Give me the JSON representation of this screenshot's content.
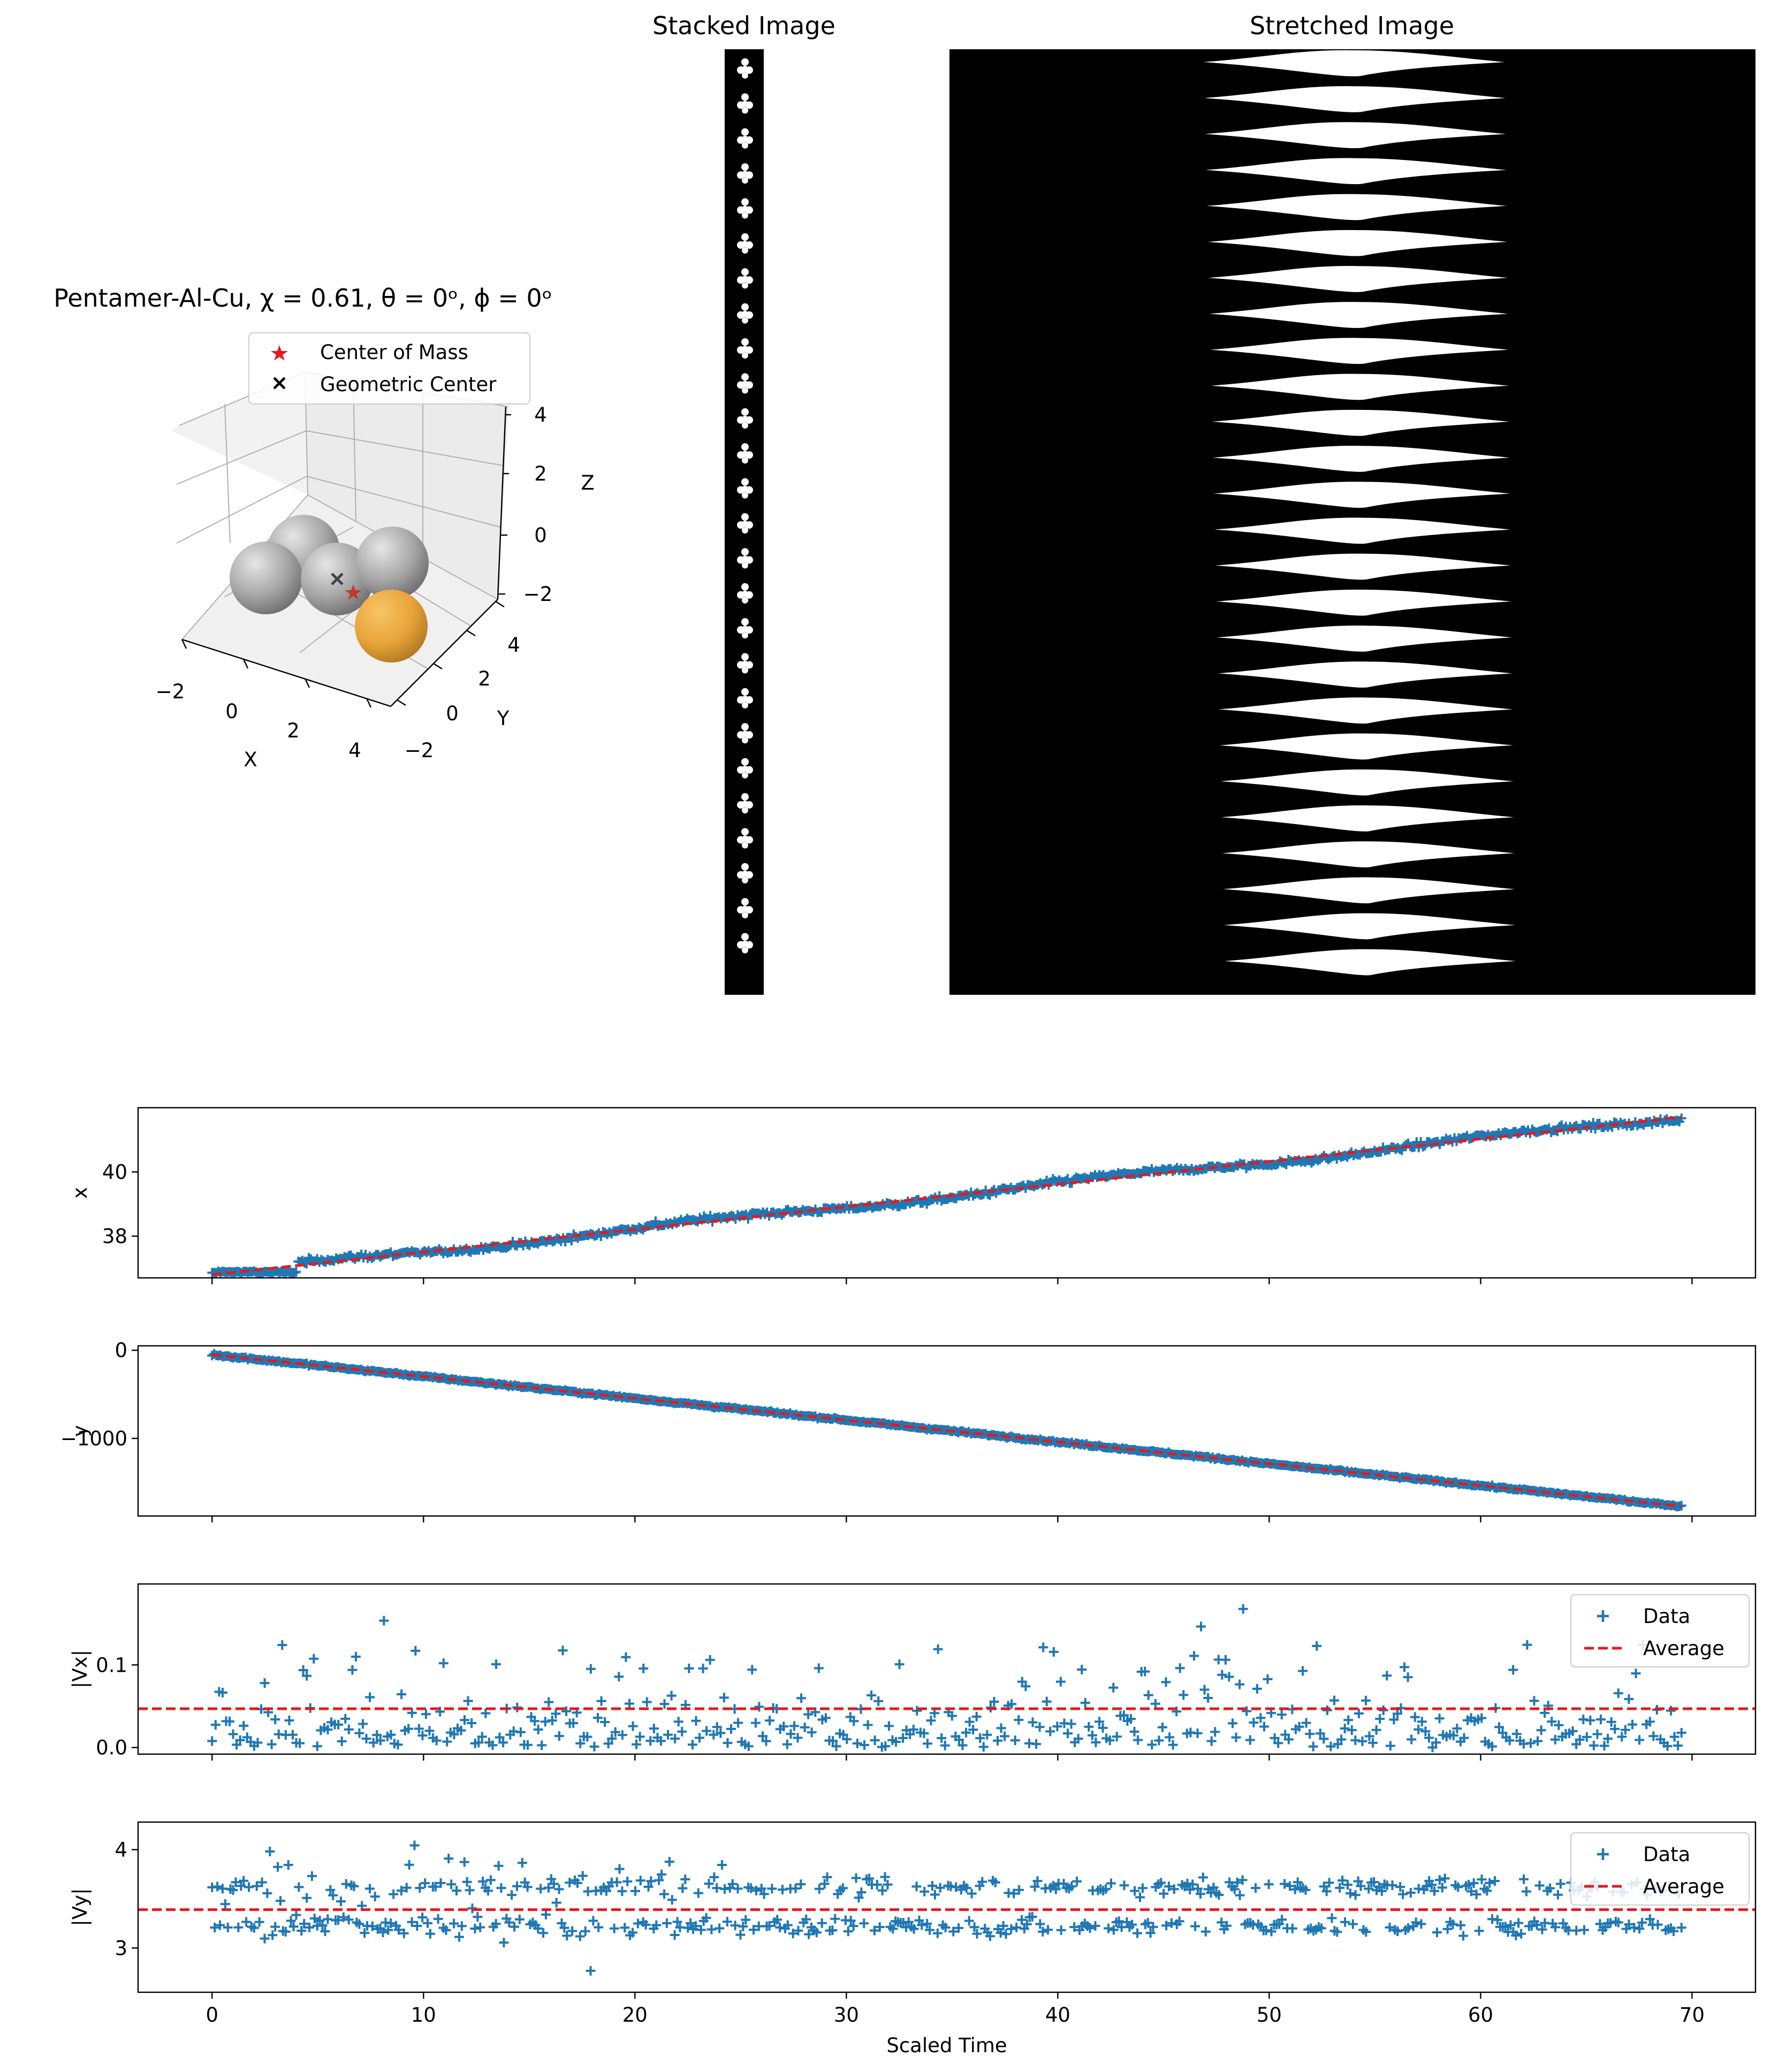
{
  "colors": {
    "data": "#1f77b4",
    "average": "#e41a1c",
    "copper": "#e8a33a",
    "aluminum": "#a8a8a8",
    "background": "#ffffff",
    "image_bg": "#000000"
  },
  "panel3d": {
    "title": "Pentamer-Al-Cu, χ = 0.61, θ = 0ᵒ, ϕ = 0ᵒ",
    "legend": [
      {
        "label": "Center of Mass",
        "marker": "star-icon",
        "color": "#e41a1c"
      },
      {
        "label": "Geometric Center",
        "marker": "x-icon",
        "color": "#000000"
      }
    ],
    "xlabel": "X",
    "ylabel": "Y",
    "zlabel": "Z",
    "xticks": [
      "−2",
      "0",
      "2",
      "4"
    ],
    "yticks": [
      "−2",
      "0",
      "2",
      "4"
    ],
    "zticks": [
      "4",
      "2",
      "0",
      "−2"
    ],
    "spheres": [
      {
        "name": "al-sphere-left",
        "material": "Al"
      },
      {
        "name": "al-sphere-back",
        "material": "Al"
      },
      {
        "name": "al-sphere-center",
        "material": "Al"
      },
      {
        "name": "al-sphere-right",
        "material": "Al"
      },
      {
        "name": "cu-sphere",
        "material": "Cu"
      }
    ]
  },
  "stacked": {
    "title": "Stacked Image",
    "frames": 26
  },
  "stretched": {
    "title": "Stretched Image",
    "bands": 26
  },
  "chart_data": [
    {
      "type": "scatter",
      "name": "x-panel",
      "ylabel": "x",
      "xlim": [
        -3.5,
        73
      ],
      "ylim": [
        36.7,
        42.0
      ],
      "yticks": [
        38,
        40
      ],
      "ytick_labels": [
        "38",
        "40"
      ],
      "series": [
        {
          "name": "Data",
          "marker": "+",
          "color": "#1f77b4",
          "model": "x_pos",
          "n": 700
        },
        {
          "name": "Average",
          "style": "dashed",
          "color": "#e41a1c",
          "x": [
            0,
            69.5
          ],
          "y": [
            36.8,
            41.7
          ]
        }
      ]
    },
    {
      "type": "scatter",
      "name": "y-panel",
      "ylabel": "y",
      "xlim": [
        -3.5,
        73
      ],
      "ylim": [
        -1880,
        50
      ],
      "yticks": [
        0,
        -1000
      ],
      "ytick_labels": [
        "0",
        "−1000"
      ],
      "series": [
        {
          "name": "Data",
          "marker": "+",
          "color": "#1f77b4",
          "model": "y_pos",
          "n": 700
        },
        {
          "name": "Average",
          "style": "dashed",
          "color": "#e41a1c",
          "x": [
            0,
            69.5
          ],
          "y": [
            -50,
            -1770
          ]
        }
      ]
    },
    {
      "type": "scatter",
      "name": "vx-panel",
      "ylabel": "|Vx|",
      "xlim": [
        -3.5,
        73
      ],
      "ylim": [
        -0.008,
        0.198
      ],
      "yticks": [
        0.0,
        0.1
      ],
      "ytick_labels": [
        "0.0",
        "0.1"
      ],
      "legend": {
        "position": "upper-right",
        "entries": [
          "Data",
          "Average"
        ]
      },
      "series": [
        {
          "name": "Data",
          "marker": "+",
          "color": "#1f77b4",
          "model": "vx",
          "n": 420
        },
        {
          "name": "Average",
          "style": "dashed",
          "color": "#e41a1c",
          "value": 0.047
        }
      ]
    },
    {
      "type": "scatter",
      "name": "vy-panel",
      "ylabel": "|Vy|",
      "xlabel": "Scaled Time",
      "xlim": [
        -3.5,
        73
      ],
      "ylim": [
        2.55,
        4.28
      ],
      "yticks": [
        3,
        4
      ],
      "ytick_labels": [
        "3",
        "4"
      ],
      "xticks": [
        0,
        10,
        20,
        30,
        40,
        50,
        60,
        70
      ],
      "xtick_labels": [
        "0",
        "10",
        "20",
        "30",
        "40",
        "50",
        "60",
        "70"
      ],
      "legend": {
        "position": "upper-right",
        "entries": [
          "Data",
          "Average"
        ]
      },
      "series": [
        {
          "name": "Data",
          "marker": "+",
          "color": "#1f77b4",
          "model": "vy",
          "n": 560
        },
        {
          "name": "Average",
          "style": "dashed",
          "color": "#e41a1c",
          "value": 3.39
        }
      ]
    }
  ]
}
